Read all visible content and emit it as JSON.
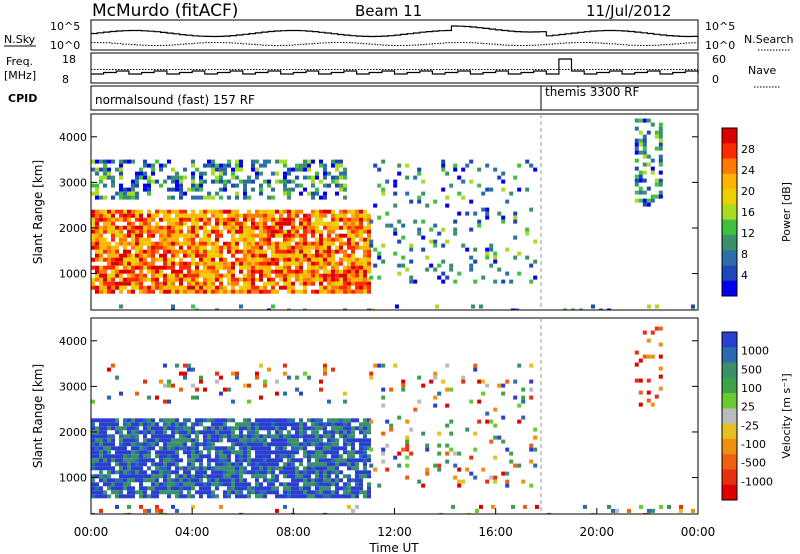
{
  "header": {
    "station": "McMurdo (fitACF)",
    "beam": "Beam 11",
    "date": "11/Jul/2012"
  },
  "params": {
    "nsky_label": "N.Sky",
    "nsky_ticks": [
      "10^5",
      "10^0"
    ],
    "nsearch_label": "N.Search",
    "nsearch_ticks": [
      "10^5",
      "10^0"
    ],
    "freq_label": "Freq.",
    "freq_unit": "[MHz]",
    "freq_ticks": [
      "18",
      "8"
    ],
    "nave_label": "Nave",
    "nave_ticks": [
      "60",
      "0"
    ],
    "cpid_label": "CPID",
    "cpid_segments": [
      {
        "label": "normalsound (fast) 157 RF",
        "start_hour": 0,
        "end_hour": 18
      },
      {
        "label": "themis 3300 RF",
        "start_hour": 18,
        "end_hour": 24
      }
    ]
  },
  "chart_data": [
    {
      "type": "heatmap",
      "name": "power",
      "xlabel": "",
      "ylabel": "Slant Range [km]",
      "xlim": [
        0,
        24
      ],
      "ylim": [
        200,
        4500
      ],
      "yticks": [
        "1000",
        "2000",
        "3000",
        "4000"
      ],
      "colorbar": {
        "label": "Power [dB]",
        "ticks": [
          "28",
          "24",
          "20",
          "16",
          "12",
          "8",
          "4"
        ],
        "colors": [
          "#dd0000",
          "#ff2a00",
          "#ff7a00",
          "#ffb400",
          "#eed000",
          "#a8dc20",
          "#40c040",
          "#3a9068",
          "#2e6ea8",
          "#1e48b8",
          "#0000ee"
        ]
      },
      "dashed_marker_hour": 18,
      "regions": [
        {
          "t0": 0.1,
          "t1": 0.3,
          "r0": 250,
          "r1": 500,
          "level": "weak"
        },
        {
          "t0": 0,
          "t1": 24,
          "r0": 200,
          "r1": 320,
          "level": "weak"
        },
        {
          "t0": 0,
          "t1": 10,
          "r0": 2700,
          "r1": 3500,
          "level": "mid"
        },
        {
          "t0": 0,
          "t1": 11,
          "r0": 600,
          "r1": 2400,
          "level": "strong"
        },
        {
          "t0": 11,
          "t1": 17.5,
          "r0": 800,
          "r1": 3500,
          "level": "weak"
        },
        {
          "t0": 21.5,
          "t1": 22.5,
          "r0": 2500,
          "r1": 4400,
          "level": "mid"
        }
      ]
    },
    {
      "type": "heatmap",
      "name": "velocity",
      "xlabel": "Time UT",
      "ylabel": "Slant Range [km]",
      "xlim": [
        0,
        24
      ],
      "ylim": [
        200,
        4500
      ],
      "xticks": [
        "00:00",
        "04:00",
        "08:00",
        "12:00",
        "16:00",
        "20:00",
        "00:00"
      ],
      "yticks": [
        "1000",
        "2000",
        "3000",
        "4000"
      ],
      "colorbar": {
        "label": "Velocity [m s⁻¹]",
        "ticks": [
          "1000",
          "500",
          "100",
          "25",
          "-25",
          "-100",
          "-500",
          "-1000"
        ],
        "colors": [
          "#2a3fd0",
          "#2a6ab0",
          "#3a9068",
          "#3ea24a",
          "#6acb30",
          "#bbbbbb",
          "#e4c020",
          "#f09010",
          "#f06010",
          "#e83010",
          "#e00000"
        ]
      },
      "dashed_marker_hour": 18,
      "regions": [
        {
          "t0": 0,
          "t1": 10,
          "r0": 2700,
          "r1": 3500,
          "level": "mixed"
        },
        {
          "t0": 0,
          "t1": 11,
          "r0": 600,
          "r1": 2300,
          "level": "positive"
        },
        {
          "t0": 0,
          "t1": 24,
          "r0": 200,
          "r1": 400,
          "level": "mixed"
        },
        {
          "t0": 11,
          "t1": 17.5,
          "r0": 800,
          "r1": 3500,
          "level": "mixed"
        },
        {
          "t0": 21.5,
          "t1": 22.5,
          "r0": 2500,
          "r1": 4400,
          "level": "negative"
        }
      ]
    }
  ]
}
